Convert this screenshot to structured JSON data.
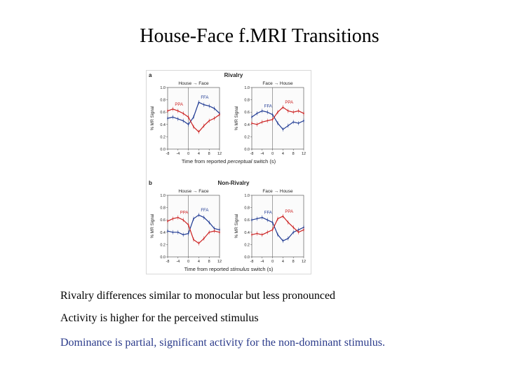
{
  "slide": {
    "title": "House-Face f.MRI Transitions",
    "bullets": [
      "Rivalry differences similar to monocular but less pronounced",
      "Activity is higher for the perceived stimulus",
      "Dominance is partial, significant activity for the non-dominant stimulus."
    ]
  },
  "colors": {
    "FFA": "#1f3a93",
    "PPA": "#cc2222",
    "bullet3": "#2a3a8a"
  },
  "figure": {
    "panels": [
      {
        "letter": "a",
        "title": "Rivalry",
        "xlabel_prefix": "Time from reported ",
        "xlabel_italic": "perceptual",
        "xlabel_suffix": " switch (s)"
      },
      {
        "letter": "b",
        "title": "Non-Rivalry",
        "xlabel_prefix": "Time from reported ",
        "xlabel_italic": "stimulus",
        "xlabel_suffix": " switch (s)"
      }
    ]
  },
  "chart_data": [
    {
      "type": "line",
      "panel": "a",
      "title": "House → Face",
      "ylabel": "% MR Signal",
      "xlim": [
        -8,
        12
      ],
      "ylim": [
        0.0,
        1.0
      ],
      "xticks": [
        "-8",
        "-4",
        "0",
        "4",
        "8",
        "12"
      ],
      "yticks": [
        "0.0",
        "0.2",
        "0.4",
        "0.6",
        "0.8",
        "1.0"
      ],
      "x": [
        -8,
        -6,
        -4,
        -2,
        0,
        2,
        4,
        6,
        8,
        10,
        12
      ],
      "series": [
        {
          "name": "FFA",
          "color": "#1f3a93",
          "values": [
            0.5,
            0.52,
            0.49,
            0.46,
            0.4,
            0.52,
            0.76,
            0.72,
            0.7,
            0.66,
            0.58
          ]
        },
        {
          "name": "PPA",
          "color": "#cc2222",
          "values": [
            0.62,
            0.65,
            0.62,
            0.58,
            0.52,
            0.36,
            0.28,
            0.38,
            0.46,
            0.5,
            0.56
          ]
        }
      ]
    },
    {
      "type": "line",
      "panel": "a",
      "title": "Face → House",
      "ylabel": "% MR Signal",
      "xlim": [
        -8,
        12
      ],
      "ylim": [
        0.0,
        1.0
      ],
      "xticks": [
        "-8",
        "-4",
        "0",
        "4",
        "8",
        "12"
      ],
      "yticks": [
        "0.0",
        "0.2",
        "0.4",
        "0.6",
        "0.8",
        "1.0"
      ],
      "x": [
        -8,
        -6,
        -4,
        -2,
        0,
        2,
        4,
        6,
        8,
        10,
        12
      ],
      "series": [
        {
          "name": "FFA",
          "color": "#1f3a93",
          "values": [
            0.52,
            0.58,
            0.62,
            0.6,
            0.56,
            0.42,
            0.32,
            0.38,
            0.44,
            0.42,
            0.46
          ]
        },
        {
          "name": "PPA",
          "color": "#cc2222",
          "values": [
            0.42,
            0.4,
            0.44,
            0.46,
            0.48,
            0.6,
            0.68,
            0.62,
            0.6,
            0.62,
            0.58
          ]
        }
      ]
    },
    {
      "type": "line",
      "panel": "b",
      "title": "House → Face",
      "ylabel": "% MR Signal",
      "xlim": [
        -8,
        12
      ],
      "ylim": [
        0.0,
        1.0
      ],
      "xticks": [
        "-8",
        "-4",
        "0",
        "4",
        "8",
        "12"
      ],
      "yticks": [
        "0.0",
        "0.2",
        "0.4",
        "0.6",
        "0.8",
        "1.0"
      ],
      "x": [
        -8,
        -6,
        -4,
        -2,
        0,
        2,
        4,
        6,
        8,
        10,
        12
      ],
      "series": [
        {
          "name": "FFA",
          "color": "#1f3a93",
          "values": [
            0.42,
            0.4,
            0.4,
            0.36,
            0.38,
            0.62,
            0.68,
            0.64,
            0.56,
            0.46,
            0.44
          ]
        },
        {
          "name": "PPA",
          "color": "#cc2222",
          "values": [
            0.58,
            0.62,
            0.64,
            0.6,
            0.52,
            0.28,
            0.22,
            0.3,
            0.4,
            0.42,
            0.4
          ]
        }
      ]
    },
    {
      "type": "line",
      "panel": "b",
      "title": "Face → House",
      "ylabel": "% MR Signal",
      "xlim": [
        -8,
        12
      ],
      "ylim": [
        0.0,
        1.0
      ],
      "xticks": [
        "-8",
        "-4",
        "0",
        "4",
        "8",
        "12"
      ],
      "yticks": [
        "0.0",
        "0.2",
        "0.4",
        "0.6",
        "0.8",
        "1.0"
      ],
      "x": [
        -8,
        -6,
        -4,
        -2,
        0,
        2,
        4,
        6,
        8,
        10,
        12
      ],
      "series": [
        {
          "name": "FFA",
          "color": "#1f3a93",
          "values": [
            0.6,
            0.62,
            0.64,
            0.6,
            0.56,
            0.36,
            0.26,
            0.3,
            0.4,
            0.44,
            0.48
          ]
        },
        {
          "name": "PPA",
          "color": "#cc2222",
          "values": [
            0.36,
            0.38,
            0.36,
            0.4,
            0.44,
            0.62,
            0.66,
            0.56,
            0.48,
            0.4,
            0.44
          ]
        }
      ]
    }
  ]
}
